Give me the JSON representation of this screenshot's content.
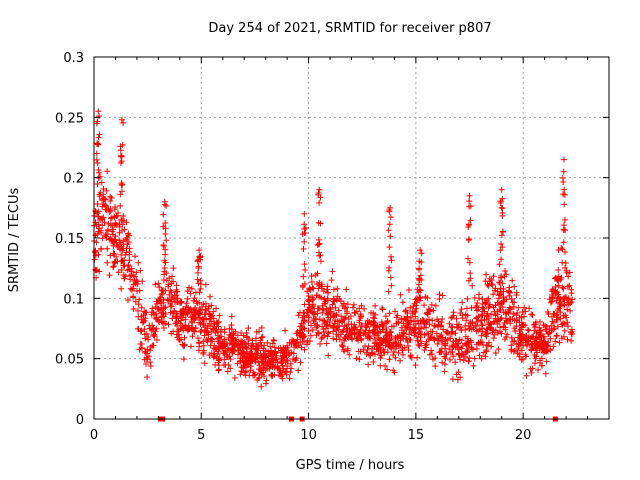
{
  "chart_data": {
    "type": "scatter",
    "title": "Day 254 of 2021, SRMTID for receiver p807",
    "xlabel": "GPS time / hours",
    "ylabel": "SRMTID / TECUs",
    "xlim": [
      0,
      24
    ],
    "ylim": [
      0,
      0.3
    ],
    "grid": true,
    "colors": {
      "series": "#ff0000",
      "grid": "#a0a0a0",
      "axis": "#000000"
    },
    "x_ticks": [
      {
        "value": 0,
        "label": "0"
      },
      {
        "value": 5,
        "label": "5"
      },
      {
        "value": 10,
        "label": "10"
      },
      {
        "value": 15,
        "label": "15"
      },
      {
        "value": 20,
        "label": "20"
      }
    ],
    "y_ticks": [
      {
        "value": 0,
        "label": "0"
      },
      {
        "value": 0.05,
        "label": "0.05"
      },
      {
        "value": 0.1,
        "label": "0.1"
      },
      {
        "value": 0.15,
        "label": "0.15"
      },
      {
        "value": 0.2,
        "label": "0.2"
      },
      {
        "value": 0.25,
        "label": "0.25"
      },
      {
        "value": 0.3,
        "label": "0.3"
      }
    ],
    "series": [
      {
        "name": "SRMTID",
        "marker": "plus",
        "envelope": [
          {
            "x": 0.0,
            "center": 0.15,
            "spread": 0.04
          },
          {
            "x": 0.3,
            "center": 0.17,
            "spread": 0.04
          },
          {
            "x": 0.6,
            "center": 0.16,
            "spread": 0.04
          },
          {
            "x": 1.0,
            "center": 0.15,
            "spread": 0.035
          },
          {
            "x": 1.5,
            "center": 0.14,
            "spread": 0.035
          },
          {
            "x": 2.0,
            "center": 0.1,
            "spread": 0.04
          },
          {
            "x": 2.5,
            "center": 0.06,
            "spread": 0.03
          },
          {
            "x": 3.0,
            "center": 0.09,
            "spread": 0.03
          },
          {
            "x": 3.5,
            "center": 0.1,
            "spread": 0.03
          },
          {
            "x": 4.0,
            "center": 0.08,
            "spread": 0.025
          },
          {
            "x": 5.0,
            "center": 0.085,
            "spread": 0.03
          },
          {
            "x": 6.0,
            "center": 0.06,
            "spread": 0.02
          },
          {
            "x": 7.0,
            "center": 0.055,
            "spread": 0.02
          },
          {
            "x": 8.0,
            "center": 0.05,
            "spread": 0.02
          },
          {
            "x": 9.0,
            "center": 0.05,
            "spread": 0.02
          },
          {
            "x": 9.5,
            "center": 0.06,
            "spread": 0.02
          },
          {
            "x": 10.0,
            "center": 0.09,
            "spread": 0.03
          },
          {
            "x": 11.0,
            "center": 0.085,
            "spread": 0.03
          },
          {
            "x": 12.0,
            "center": 0.075,
            "spread": 0.025
          },
          {
            "x": 13.0,
            "center": 0.07,
            "spread": 0.025
          },
          {
            "x": 14.0,
            "center": 0.065,
            "spread": 0.025
          },
          {
            "x": 15.0,
            "center": 0.08,
            "spread": 0.03
          },
          {
            "x": 16.0,
            "center": 0.07,
            "spread": 0.025
          },
          {
            "x": 17.0,
            "center": 0.065,
            "spread": 0.03
          },
          {
            "x": 18.0,
            "center": 0.08,
            "spread": 0.035
          },
          {
            "x": 19.0,
            "center": 0.1,
            "spread": 0.04
          },
          {
            "x": 20.0,
            "center": 0.07,
            "spread": 0.03
          },
          {
            "x": 21.0,
            "center": 0.06,
            "spread": 0.02
          },
          {
            "x": 21.5,
            "center": 0.1,
            "spread": 0.045
          },
          {
            "x": 22.2,
            "center": 0.09,
            "spread": 0.04
          }
        ],
        "points_per_hour": 100,
        "x_range": [
          0,
          22.3
        ],
        "spikes": [
          {
            "x": 0.2,
            "top": 0.255
          },
          {
            "x": 1.3,
            "top": 0.248
          },
          {
            "x": 3.3,
            "top": 0.18
          },
          {
            "x": 4.9,
            "top": 0.14
          },
          {
            "x": 9.8,
            "top": 0.17
          },
          {
            "x": 10.5,
            "top": 0.19
          },
          {
            "x": 13.8,
            "top": 0.175
          },
          {
            "x": 15.2,
            "top": 0.14
          },
          {
            "x": 17.5,
            "top": 0.185
          },
          {
            "x": 19.0,
            "top": 0.19
          },
          {
            "x": 21.9,
            "top": 0.215
          }
        ]
      }
    ],
    "zero_markers": [
      3.1,
      3.2,
      9.2,
      9.7,
      21.5
    ]
  }
}
